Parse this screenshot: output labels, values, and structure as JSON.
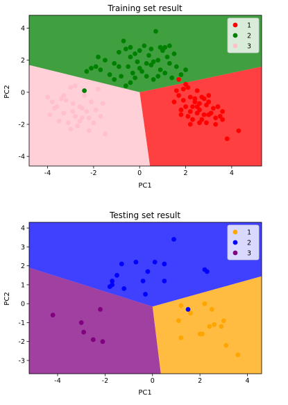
{
  "chart_data": [
    {
      "type": "scatter",
      "title": "Training set result",
      "xlabel": "PC1",
      "ylabel": "PC2",
      "xlim": [
        -4.8,
        5.3
      ],
      "ylim": [
        -4.6,
        4.8
      ],
      "xticks": [
        -4,
        -2,
        0,
        2,
        4
      ],
      "yticks": [
        -4,
        -2,
        0,
        2,
        4
      ],
      "legend_position": "upper-right",
      "regions": [
        {
          "class": "1",
          "color": "#ff0000",
          "opacity": 0.75
        },
        {
          "class": "2",
          "color": "#008000",
          "opacity": 0.75
        },
        {
          "class": "3",
          "color": "#ffc0cb",
          "opacity": 0.75
        }
      ],
      "boundaries": [
        [
          [
            -4.8,
            1.7
          ],
          [
            0,
            0
          ],
          [
            5.3,
            1.6
          ]
        ],
        [
          [
            0,
            0
          ],
          [
            0.45,
            -4.6
          ]
        ]
      ],
      "series": [
        {
          "name": "1",
          "color": "#ff0000",
          "points": [
            [
              1.7,
              0.8
            ],
            [
              1.9,
              0.2
            ],
            [
              2.0,
              0.5
            ],
            [
              2.2,
              -0.3
            ],
            [
              2.5,
              0.1
            ],
            [
              2.8,
              -0.4
            ],
            [
              3.0,
              -0.6
            ],
            [
              2.3,
              -0.9
            ],
            [
              2.6,
              -1.1
            ],
            [
              3.1,
              -1.3
            ],
            [
              3.4,
              -0.9
            ],
            [
              2.1,
              -1.5
            ],
            [
              2.7,
              -1.7
            ],
            [
              3.3,
              -1.6
            ],
            [
              3.6,
              -1.2
            ],
            [
              4.3,
              -2.4
            ],
            [
              3.8,
              -2.9
            ],
            [
              2.2,
              -2.0
            ],
            [
              1.8,
              -1.1
            ],
            [
              2.9,
              -1.9
            ],
            [
              1.7,
              -0.2
            ],
            [
              2.4,
              -0.6
            ],
            [
              3.0,
              -0.2
            ],
            [
              2.0,
              -0.9
            ],
            [
              2.5,
              -1.3
            ],
            [
              3.2,
              -1.0
            ],
            [
              1.6,
              0.1
            ],
            [
              2.8,
              -1.4
            ],
            [
              2.6,
              -0.7
            ],
            [
              2.2,
              -1.2
            ],
            [
              3.5,
              -1.5
            ],
            [
              1.9,
              -0.5
            ],
            [
              2.7,
              -0.3
            ],
            [
              2.3,
              -1.7
            ],
            [
              1.5,
              -0.6
            ],
            [
              2.9,
              -0.8
            ],
            [
              3.3,
              -2.0
            ],
            [
              2.1,
              0.3
            ],
            [
              2.4,
              -0.4
            ],
            [
              2.6,
              -1.9
            ],
            [
              3.0,
              -1.4
            ],
            [
              1.8,
              -1.4
            ],
            [
              2.5,
              -0.9
            ],
            [
              3.6,
              -1.7
            ]
          ]
        },
        {
          "name": "2",
          "color": "#008000",
          "points": [
            [
              -2.4,
              0.1
            ],
            [
              -2.3,
              1.3
            ],
            [
              -2.1,
              1.5
            ],
            [
              -1.8,
              2.2
            ],
            [
              -1.7,
              1.4
            ],
            [
              -1.5,
              2.0
            ],
            [
              -1.3,
              1.1
            ],
            [
              -1.1,
              1.8
            ],
            [
              -0.9,
              2.5
            ],
            [
              -0.8,
              1.0
            ],
            [
              -0.7,
              3.2
            ],
            [
              -0.6,
              2.7
            ],
            [
              -0.5,
              1.6
            ],
            [
              -0.4,
              2.2
            ],
            [
              -0.3,
              1.2
            ],
            [
              -0.2,
              0.9
            ],
            [
              -0.1,
              1.9
            ],
            [
              0.0,
              2.6
            ],
            [
              0.1,
              1.3
            ],
            [
              0.2,
              2.9
            ],
            [
              0.3,
              1.0
            ],
            [
              0.4,
              2.3
            ],
            [
              0.5,
              1.7
            ],
            [
              0.6,
              0.8
            ],
            [
              0.7,
              3.8
            ],
            [
              0.8,
              2.0
            ],
            [
              0.9,
              1.4
            ],
            [
              1.0,
              2.6
            ],
            [
              1.1,
              1.2
            ],
            [
              1.2,
              2.2
            ],
            [
              1.3,
              1.8
            ],
            [
              1.4,
              0.9
            ],
            [
              1.6,
              1.6
            ],
            [
              1.8,
              1.1
            ],
            [
              2.0,
              1.4
            ],
            [
              0.6,
              1.9
            ],
            [
              0.9,
              2.8
            ],
            [
              -0.4,
              2.8
            ],
            [
              1.1,
              2.8
            ],
            [
              -0.9,
              1.6
            ],
            [
              -0.6,
              0.4
            ],
            [
              0.8,
              1.0
            ],
            [
              0.3,
              1.8
            ],
            [
              -0.4,
              0.6
            ],
            [
              0.5,
              2.7
            ],
            [
              -1.1,
              0.8
            ],
            [
              0.0,
              1.5
            ],
            [
              -1.9,
              1.6
            ],
            [
              1.3,
              2.9
            ],
            [
              1.5,
              2.4
            ],
            [
              -0.2,
              2.4
            ]
          ]
        },
        {
          "name": "3",
          "color": "#ffc0cb",
          "points": [
            [
              -4.0,
              -0.3
            ],
            [
              -3.8,
              -0.6
            ],
            [
              -3.6,
              -0.9
            ],
            [
              -3.4,
              -0.4
            ],
            [
              -3.3,
              -1.3
            ],
            [
              -3.1,
              -1.9
            ],
            [
              -3.0,
              0.3
            ],
            [
              -2.9,
              -0.7
            ],
            [
              -2.8,
              -1.5
            ],
            [
              -2.7,
              -2.1
            ],
            [
              -2.6,
              -0.9
            ],
            [
              -2.5,
              -1.6
            ],
            [
              -2.4,
              -0.2
            ],
            [
              -2.3,
              -1.2
            ],
            [
              -2.2,
              -2.4
            ],
            [
              -2.1,
              -0.6
            ],
            [
              -2.0,
              -1.9
            ],
            [
              -1.9,
              -1.1
            ],
            [
              -1.8,
              0.2
            ],
            [
              -1.7,
              -1.5
            ],
            [
              -3.5,
              -1.8
            ],
            [
              -3.7,
              -1.0
            ],
            [
              -3.2,
              -0.5
            ],
            [
              -2.9,
              -1.2
            ],
            [
              -2.6,
              -1.8
            ],
            [
              -3.9,
              -1.4
            ],
            [
              -1.6,
              -0.7
            ],
            [
              -2.8,
              0.4
            ],
            [
              -3.0,
              -2.3
            ],
            [
              -1.5,
              -2.6
            ],
            [
              -2.5,
              -1.0
            ],
            [
              -3.3,
              -0.2
            ],
            [
              -2.2,
              -1.6
            ]
          ]
        }
      ]
    },
    {
      "type": "scatter",
      "title": "Testing set result",
      "xlabel": "PC1",
      "ylabel": "PC2",
      "xlim": [
        -5.2,
        4.6
      ],
      "ylim": [
        -3.7,
        4.3
      ],
      "xticks": [
        -4,
        -2,
        0,
        2,
        4
      ],
      "yticks": [
        -3,
        -2,
        -1,
        0,
        1,
        2,
        3,
        4
      ],
      "legend_position": "upper-right",
      "regions": [
        {
          "class": "1",
          "color": "#ffa500",
          "opacity": 0.75
        },
        {
          "class": "2",
          "color": "#0000ff",
          "opacity": 0.75
        },
        {
          "class": "3",
          "color": "#800080",
          "opacity": 0.75
        }
      ],
      "boundaries": [
        [
          [
            -5.2,
            1.9
          ],
          [
            0,
            -0.15
          ],
          [
            4.6,
            1.45
          ]
        ],
        [
          [
            0,
            -0.15
          ],
          [
            0.35,
            -3.7
          ]
        ]
      ],
      "series": [
        {
          "name": "1",
          "color": "#ffa500",
          "points": [
            [
              1.2,
              -0.1
            ],
            [
              1.1,
              -0.9
            ],
            [
              1.6,
              -0.5
            ],
            [
              2.2,
              0.0
            ],
            [
              2.6,
              -1.1
            ],
            [
              2.9,
              -1.2
            ],
            [
              3.0,
              -0.9
            ],
            [
              2.5,
              -0.3
            ],
            [
              2.0,
              -1.6
            ],
            [
              1.2,
              -1.8
            ],
            [
              3.1,
              -2.2
            ],
            [
              3.6,
              -2.7
            ],
            [
              2.4,
              -1.2
            ],
            [
              2.1,
              -1.6
            ]
          ]
        },
        {
          "name": "2",
          "color": "#0000ff",
          "points": [
            [
              -1.8,
              0.9
            ],
            [
              -1.7,
              1.2
            ],
            [
              -1.5,
              1.5
            ],
            [
              -1.3,
              2.1
            ],
            [
              -1.2,
              0.8
            ],
            [
              -0.7,
              2.2
            ],
            [
              -0.4,
              1.2
            ],
            [
              -0.3,
              0.5
            ],
            [
              -0.2,
              1.7
            ],
            [
              0.1,
              2.2
            ],
            [
              0.5,
              1.2
            ],
            [
              0.5,
              2.1
            ],
            [
              0.9,
              3.4
            ],
            [
              2.2,
              1.8
            ],
            [
              2.3,
              1.7
            ],
            [
              1.5,
              -0.3
            ],
            [
              -1.7,
              1.0
            ]
          ]
        },
        {
          "name": "3",
          "color": "#800080",
          "points": [
            [
              -4.2,
              -0.6
            ],
            [
              -3.0,
              -1.0
            ],
            [
              -2.9,
              -1.5
            ],
            [
              -2.5,
              -1.9
            ],
            [
              -2.2,
              -0.3
            ],
            [
              -2.1,
              -2.0
            ]
          ]
        }
      ]
    }
  ]
}
